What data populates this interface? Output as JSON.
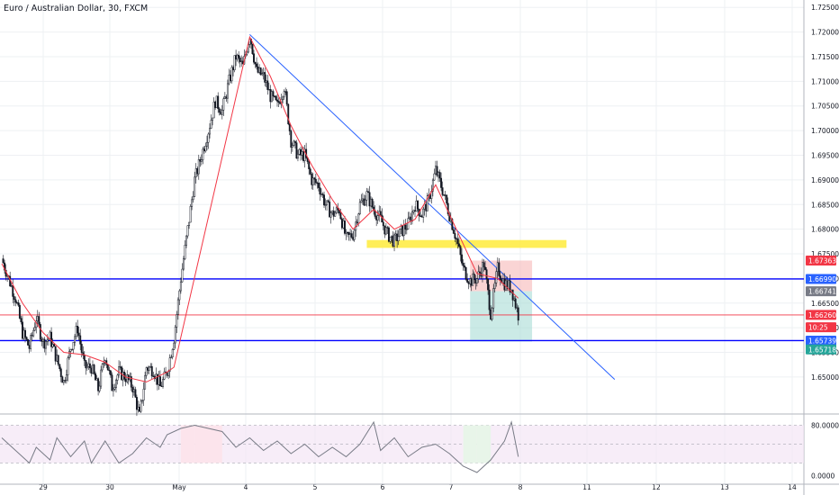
{
  "title": "Euro / Australian Dollar, 30, FXCM",
  "chart_data": {
    "type": "candlestick",
    "symbol": "EURAUD",
    "timeframe": "30",
    "source": "FXCM",
    "y_axis": {
      "ylim": [
        1.6425,
        1.7265
      ],
      "ticks": [
        "1.72500",
        "1.72000",
        "1.71500",
        "1.71000",
        "1.70500",
        "1.70000",
        "1.69500",
        "1.69000",
        "1.68500",
        "1.68000",
        "1.67500",
        "1.67000",
        "1.66500",
        "1.66000",
        "1.65500",
        "1.65000"
      ]
    },
    "x_axis": {
      "tick_labels": [
        "29",
        "30",
        "May",
        "4",
        "5",
        "6",
        "7",
        "8",
        "11",
        "12",
        "13",
        "14"
      ]
    },
    "grid": true,
    "price_path": [
      [
        0,
        1.674
      ],
      [
        1,
        1.67
      ],
      [
        2,
        1.666
      ],
      [
        3,
        1.659
      ],
      [
        4,
        1.656
      ],
      [
        5,
        1.662
      ],
      [
        6,
        1.657
      ],
      [
        7,
        1.658
      ],
      [
        8,
        1.6535
      ],
      [
        9,
        1.649
      ],
      [
        10,
        1.656
      ],
      [
        11,
        1.66
      ],
      [
        12,
        1.652
      ],
      [
        13,
        1.652
      ],
      [
        14,
        1.6475
      ],
      [
        15,
        1.6545
      ],
      [
        16,
        1.648
      ],
      [
        17,
        1.651
      ],
      [
        18,
        1.65
      ],
      [
        19,
        1.648
      ],
      [
        20,
        1.642
      ],
      [
        21,
        1.652
      ],
      [
        22,
        1.6515
      ],
      [
        23,
        1.648
      ],
      [
        24,
        1.651
      ],
      [
        25,
        1.658
      ],
      [
        26,
        1.67
      ],
      [
        27,
        1.68
      ],
      [
        28,
        1.69
      ],
      [
        29,
        1.695
      ],
      [
        30,
        1.7
      ],
      [
        31,
        1.706
      ],
      [
        32,
        1.704
      ],
      [
        33,
        1.71
      ],
      [
        34,
        1.715
      ],
      [
        35,
        1.713
      ],
      [
        36,
        1.7195
      ],
      [
        37,
        1.712
      ],
      [
        38,
        1.711
      ],
      [
        39,
        1.707
      ],
      [
        40,
        1.705
      ],
      [
        41,
        1.709
      ],
      [
        42,
        1.698
      ],
      [
        43,
        1.695
      ],
      [
        44,
        1.695
      ],
      [
        45,
        1.69
      ],
      [
        46,
        1.689
      ],
      [
        47,
        1.685
      ],
      [
        48,
        1.683
      ],
      [
        49,
        1.684
      ],
      [
        50,
        1.678
      ],
      [
        51,
        1.679
      ],
      [
        52,
        1.685
      ],
      [
        53,
        1.687
      ],
      [
        54,
        1.684
      ],
      [
        55,
        1.682
      ],
      [
        56,
        1.679
      ],
      [
        57,
        1.6775
      ],
      [
        58,
        1.6795
      ],
      [
        59,
        1.681
      ],
      [
        60,
        1.685
      ],
      [
        61,
        1.683
      ],
      [
        62,
        1.686
      ],
      [
        63,
        1.692
      ],
      [
        64,
        1.688
      ],
      [
        65,
        1.683
      ],
      [
        66,
        1.678
      ],
      [
        67,
        1.672
      ],
      [
        68,
        1.6695
      ],
      [
        69,
        1.67
      ],
      [
        70,
        1.673
      ],
      [
        71,
        1.663
      ],
      [
        72,
        1.672
      ],
      [
        73,
        1.669
      ],
      [
        74,
        1.668
      ],
      [
        75,
        1.6626
      ]
    ],
    "ema_path": [
      [
        0,
        1.673
      ],
      [
        3,
        1.665
      ],
      [
        6,
        1.659
      ],
      [
        9,
        1.655
      ],
      [
        12,
        1.6545
      ],
      [
        15,
        1.653
      ],
      [
        18,
        1.65
      ],
      [
        21,
        1.649
      ],
      [
        24,
        1.651
      ],
      [
        25,
        1.652
      ],
      [
        36,
        1.719
      ],
      [
        39,
        1.711
      ],
      [
        42,
        1.701
      ],
      [
        45,
        1.693
      ],
      [
        48,
        1.686
      ],
      [
        51,
        1.68
      ],
      [
        54,
        1.684
      ],
      [
        57,
        1.68
      ],
      [
        60,
        1.682
      ],
      [
        63,
        1.689
      ],
      [
        66,
        1.68
      ],
      [
        69,
        1.671
      ],
      [
        72,
        1.67
      ],
      [
        75,
        1.666
      ]
    ],
    "trendline": {
      "from": [
        36,
        1.7195
      ],
      "to": [
        89,
        1.6495
      ]
    },
    "horizontal_lines": [
      {
        "price": 1.6699,
        "label": "1.66990",
        "color": "#0000ff"
      },
      {
        "price": 1.65739,
        "label": "1.65739",
        "color": "#0000ff"
      },
      {
        "price": 1.6626,
        "label": "1.66260",
        "color": "#f23645"
      }
    ],
    "zones": [
      {
        "kind": "supply-demand",
        "x": [
          53,
          82
        ],
        "y": [
          1.6778,
          1.6762
        ],
        "color": "#ffeb3b"
      },
      {
        "kind": "risk",
        "x": [
          68,
          77
        ],
        "y": [
          1.67363,
          1.66741
        ],
        "color": "#f7b7b7"
      },
      {
        "kind": "reward",
        "x": [
          68,
          77
        ],
        "y": [
          1.66741,
          1.65718
        ],
        "color": "#a8dcd6"
      }
    ],
    "price_badges": [
      {
        "price": 1.67363,
        "label": "1.67363",
        "color": "#f23645"
      },
      {
        "price": 1.6699,
        "label": "1.66990",
        "color": "#2962ff"
      },
      {
        "price": 1.66741,
        "label": "1.66741",
        "color": "#787b86"
      },
      {
        "price": 1.6626,
        "label": "1.66260",
        "color": "#f23645"
      },
      {
        "price": 1.6601,
        "label": "10:25",
        "color": "#f23645"
      },
      {
        "price": 1.65739,
        "label": "1.65739",
        "color": "#2962ff"
      },
      {
        "price": 1.6556,
        "label": "1.65718",
        "color": "#26a69a"
      }
    ],
    "oscillator": {
      "ylim": [
        -5,
        95
      ],
      "ticks": [
        "80.0000",
        "0.0000"
      ],
      "levels": [
        80,
        50,
        20
      ],
      "values": [
        [
          0,
          60
        ],
        [
          2,
          40
        ],
        [
          4,
          20
        ],
        [
          5,
          45
        ],
        [
          7,
          25
        ],
        [
          8,
          60
        ],
        [
          10,
          30
        ],
        [
          12,
          55
        ],
        [
          13,
          20
        ],
        [
          15,
          55
        ],
        [
          17,
          20
        ],
        [
          19,
          35
        ],
        [
          21,
          60
        ],
        [
          23,
          45
        ],
        [
          24,
          65
        ],
        [
          26,
          75
        ],
        [
          28,
          80
        ],
        [
          30,
          75
        ],
        [
          32,
          70
        ],
        [
          34,
          45
        ],
        [
          36,
          60
        ],
        [
          38,
          40
        ],
        [
          40,
          55
        ],
        [
          42,
          35
        ],
        [
          44,
          50
        ],
        [
          46,
          30
        ],
        [
          48,
          45
        ],
        [
          50,
          30
        ],
        [
          52,
          50
        ],
        [
          54,
          85
        ],
        [
          55,
          40
        ],
        [
          57,
          60
        ],
        [
          59,
          30
        ],
        [
          61,
          45
        ],
        [
          63,
          50
        ],
        [
          65,
          35
        ],
        [
          67,
          15
        ],
        [
          69,
          5
        ],
        [
          71,
          25
        ],
        [
          73,
          55
        ],
        [
          74,
          85
        ],
        [
          75,
          30
        ]
      ]
    }
  }
}
